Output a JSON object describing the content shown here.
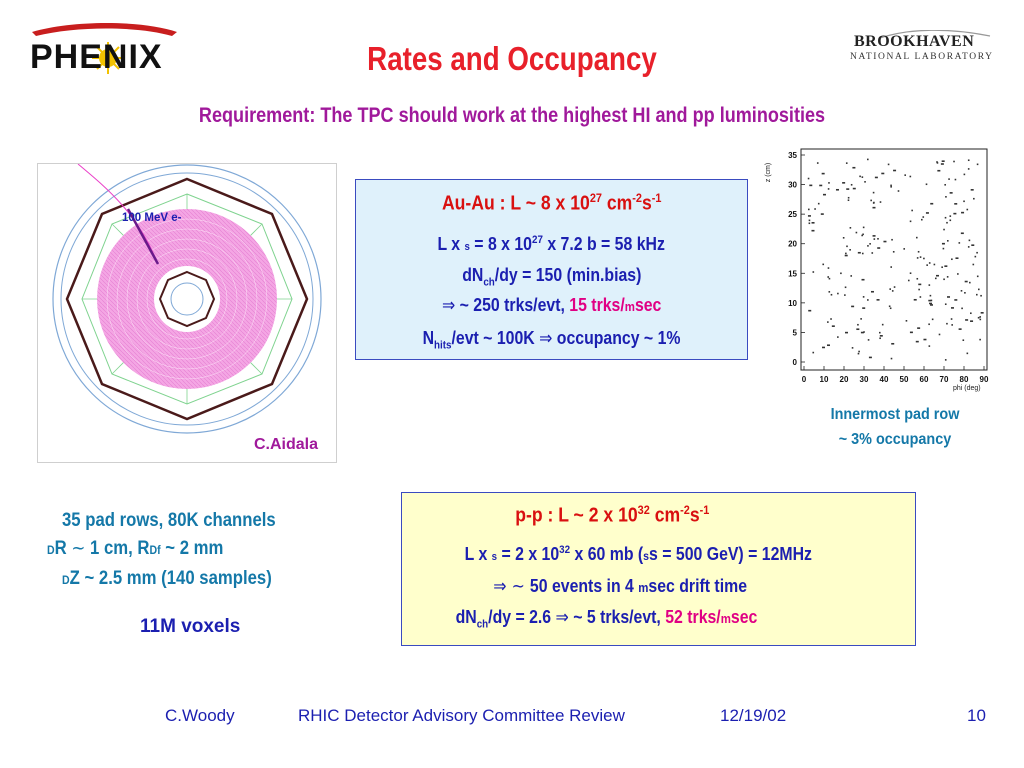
{
  "header": {
    "logo_left": "PHENIX",
    "title": "Rates and Occupancy",
    "logo_right_line1": "BROOKHAVEN",
    "logo_right_line2": "NATIONAL LABORATORY"
  },
  "requirement": "Requirement:  The TPC should work at the highest HI and pp luminosities",
  "tpc_figure": {
    "electron_label": "100 MeV e-",
    "credit": "C.Aidala"
  },
  "auau_box": {
    "heading_pre": "Au-Au :  L ~  8 x 10",
    "heading_exp1": "27",
    "heading_mid": " cm",
    "heading_exp2": "-2",
    "heading_s": "s",
    "heading_exp3": "-1",
    "l1_pre": "L x ",
    "l1_sigma": "s",
    "l1_mid": " = 8 x 10",
    "l1_exp": "27",
    "l1_post": " x 7.2 b = 58 kHz",
    "l2_pre": "dN",
    "l2_sub": "ch",
    "l2_post": "/dy = 150 (min.bias)",
    "l3_arrow": "⇒",
    "l3_a": " ~ 250 trks/evt,  ",
    "l3_b": "15 trks/",
    "l3_mu": "m",
    "l3_c": "sec",
    "l4_pre": "N",
    "l4_sub": "hits",
    "l4_a": "/evt ~ 100K  ",
    "l4_arrow": "⇒",
    "l4_b": " occupancy ~ 1%"
  },
  "scatter_plot": {
    "y_axis_label": "z (cm)",
    "x_axis_label": "phi (deg)",
    "x_ticks": [
      "0",
      "10",
      "20",
      "30",
      "40",
      "50",
      "60",
      "70",
      "80",
      "90"
    ],
    "y_ticks": [
      "0",
      "5",
      "10",
      "15",
      "20",
      "25",
      "30",
      "35"
    ],
    "caption_line1": "Innermost  pad  row",
    "caption_line2": "~ 3% occupancy"
  },
  "specs": {
    "pad_rows": "35 pad rows,  80K channels",
    "dr_delta": "D",
    "dr_a": "R ",
    "dr_tilde": "~",
    "dr_b": " 1 cm, R",
    "dr_delta2": "D",
    "dr_phi": "f",
    "dr_c": " ~ 2 mm",
    "dz_delta": "D",
    "dz_text": "Z ~ 2.5 mm (140 samples)",
    "voxels": "11M voxels"
  },
  "pp_box": {
    "heading_pre": "p-p :  L ~  2 x 10",
    "heading_exp1": "32",
    "heading_mid": " cm",
    "heading_exp2": "-2",
    "heading_s": "s",
    "heading_exp3": "-1",
    "l1_pre": "L x ",
    "l1_sigma": "s",
    "l1_mid": "  = 2 x 10",
    "l1_exp": "32",
    "l1_post_a": " x 60 mb (",
    "l1_sqrt": "s",
    "l1_post_b": "s = 500 GeV) = 12MHz",
    "l2_arrow": "⇒",
    "l2_tilde": " ~ ",
    "l2_a": " 50 events in 4 ",
    "l2_mu": "m",
    "l2_b": "sec drift time",
    "l3_pre": "dN",
    "l3_sub": "ch",
    "l3_a": "/dy = 2.6  ",
    "l3_arrow": "⇒",
    "l3_b": " ~ 5 trks/evt, ",
    "l3_c": "52 trks/",
    "l3_mu": "m",
    "l3_d": "sec"
  },
  "footer": {
    "author": "C.Woody",
    "event": "RHIC Detector Advisory Committee Review",
    "date": "12/19/02",
    "page": "10"
  }
}
